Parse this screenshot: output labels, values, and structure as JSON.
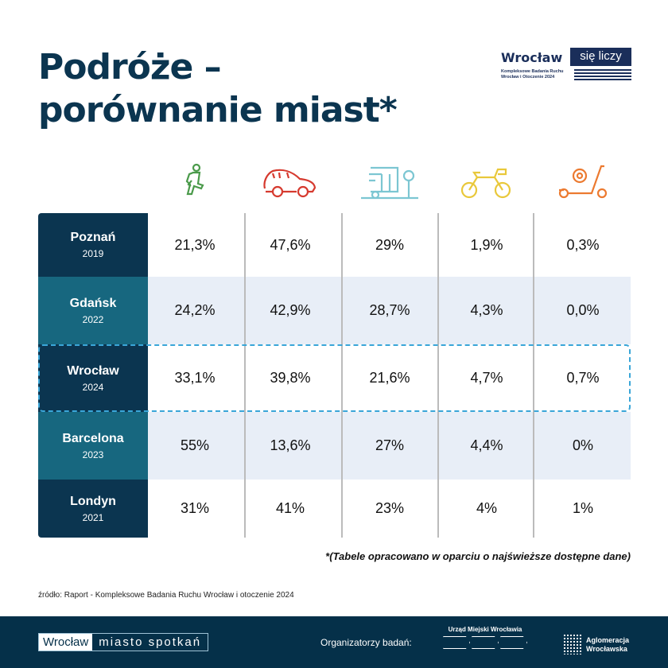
{
  "title_line1": "Podróże –",
  "title_line2": "porównanie miast*",
  "logo": {
    "wroclaw": "Wrocław",
    "sie_liczy": "się liczy",
    "subtitle": "Kompleksowe Badania Ruchu Wrocław i Otoczenie 2024"
  },
  "modes": [
    "walking-icon",
    "car-icon",
    "public-transport-icon",
    "bicycle-icon",
    "scooter-icon"
  ],
  "colors": {
    "walk": "#4a9a4a",
    "car": "#d63a2f",
    "pt": "#7cc6d2",
    "bike": "#e9c83a",
    "scooter": "#ec7a30",
    "dark": "#0b3550",
    "teal": "#17677f"
  },
  "rows": [
    {
      "city": "Poznań",
      "year": "2019",
      "values": [
        "21,3%",
        "47,6%",
        "29%",
        "1,9%",
        "0,3%"
      ]
    },
    {
      "city": "Gdańsk",
      "year": "2022",
      "values": [
        "24,2%",
        "42,9%",
        "28,7%",
        "4,3%",
        "0,0%"
      ]
    },
    {
      "city": "Wrocław",
      "year": "2024",
      "values": [
        "33,1%",
        "39,8%",
        "21,6%",
        "4,7%",
        "0,7%"
      ]
    },
    {
      "city": "Barcelona",
      "year": "2023",
      "values": [
        "55%",
        "13,6%",
        "27%",
        "4,4%",
        "0%"
      ]
    },
    {
      "city": "Londyn",
      "year": "2021",
      "values": [
        "31%",
        "41%",
        "23%",
        "4%",
        "1%"
      ]
    }
  ],
  "note": "*(Tabele opracowano w oparciu o najświeższe dostępne dane)",
  "source": "źródło: Raport - Kompleksowe Badania Ruchu Wrocław i otoczenie 2024",
  "footer": {
    "brand_a": "Wrocław",
    "brand_b": "miasto spotkań",
    "organizers": "Organizatorzy badań:",
    "um": "Urząd Miejski Wrocławia",
    "ag1": "Aglomeracja",
    "ag2": "Wrocławska"
  }
}
